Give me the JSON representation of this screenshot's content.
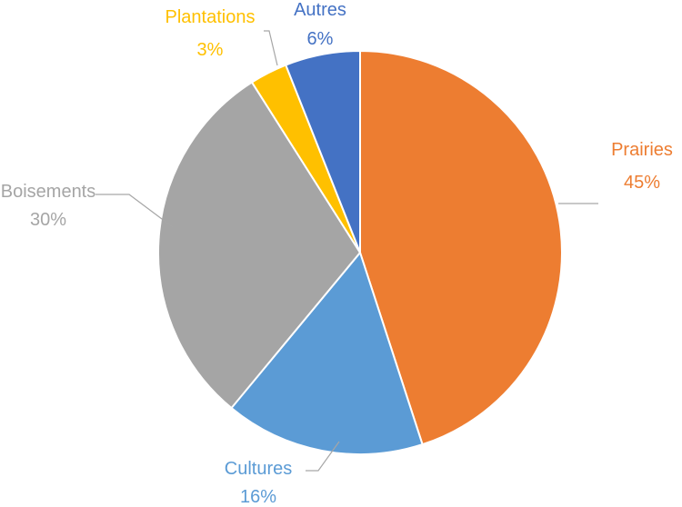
{
  "chart_data": {
    "type": "pie",
    "title": "",
    "legend": "none",
    "slices": [
      {
        "label": "Prairies",
        "value": 45,
        "display": "45%",
        "color": "#ED7D31",
        "label_color": "#ED7D31"
      },
      {
        "label": "Cultures",
        "value": 16,
        "display": "16%",
        "color": "#5B9BD5",
        "label_color": "#5B9BD5"
      },
      {
        "label": "Boisements",
        "value": 30,
        "display": "30%",
        "color": "#A5A5A5",
        "label_color": "#A5A5A5"
      },
      {
        "label": "Plantations",
        "value": 3,
        "display": "3%",
        "color": "#FFC000",
        "label_color": "#FFC000"
      },
      {
        "label": "Autres",
        "value": 6,
        "display": "6%",
        "color": "#4472C4",
        "label_color": "#4472C4"
      }
    ]
  }
}
